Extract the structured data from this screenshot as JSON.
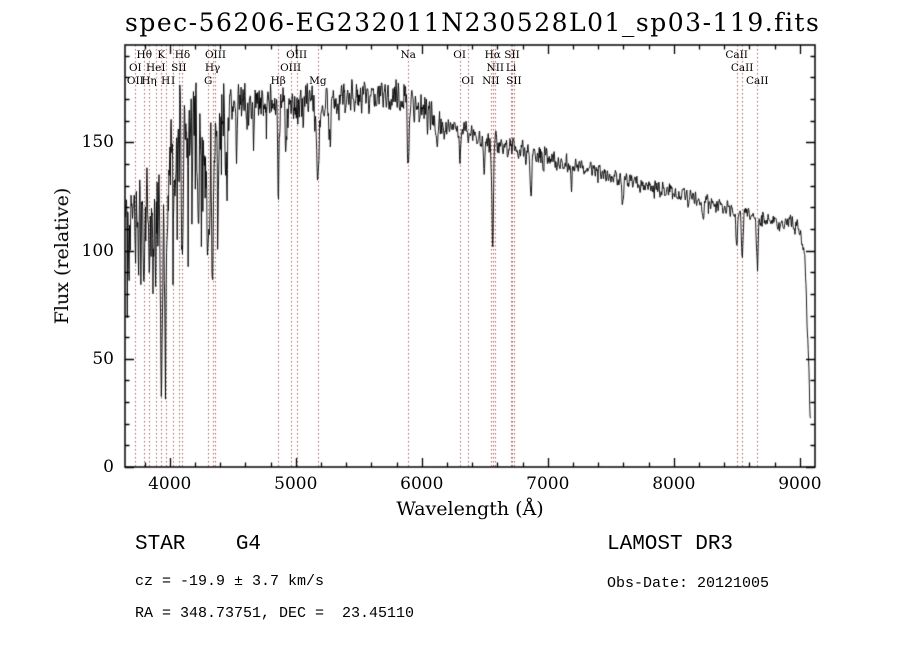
{
  "figure": {
    "footer": {
      "class_label": "STAR    G4",
      "survey": "LAMOST DR3",
      "cz": "cz = -19.9 ± 3.7 km/s",
      "obs_date": "Obs-Date: 20121005",
      "ra_dec": "RA = 348.73751, DEC =  23.45110"
    }
  },
  "chart_data": {
    "type": "line",
    "title": "spec-56206-EG232011N230528L01_sp03-119.fits",
    "xlabel": "Wavelength (Å)",
    "ylabel": "Flux (relative)",
    "xlim": [
      3645,
      9120
    ],
    "ylim": [
      0,
      195
    ],
    "x_ticks": [
      4000,
      5000,
      6000,
      7000,
      8000,
      9000
    ],
    "x_minor_step": 200,
    "y_ticks": [
      0,
      50,
      100,
      150
    ],
    "y_minor_step": 10,
    "grid": false,
    "legend": null,
    "line_color": "#000000",
    "marker_line_color": "#a04545",
    "description": "LAMOST DR3 stellar spectrum: noisy black flux curve peaking near 5800 Å at ~175 relative flux, declining to ~110 at 9000 Å then dropping sharply; red dotted vertical lines mark spectral features",
    "envelope": [
      [
        3645,
        100
      ],
      [
        3700,
        122
      ],
      [
        3760,
        136
      ],
      [
        3820,
        140
      ],
      [
        3880,
        134
      ],
      [
        3940,
        122
      ],
      [
        4000,
        146
      ],
      [
        4060,
        152
      ],
      [
        4120,
        150
      ],
      [
        4180,
        155
      ],
      [
        4240,
        152
      ],
      [
        4300,
        148
      ],
      [
        4360,
        155
      ],
      [
        4420,
        160
      ],
      [
        4500,
        165
      ],
      [
        4600,
        170
      ],
      [
        4700,
        168
      ],
      [
        4800,
        166
      ],
      [
        4900,
        170
      ],
      [
        5000,
        167
      ],
      [
        5100,
        170
      ],
      [
        5200,
        168
      ],
      [
        5300,
        170
      ],
      [
        5400,
        171
      ],
      [
        5500,
        169
      ],
      [
        5600,
        171
      ],
      [
        5700,
        170
      ],
      [
        5800,
        173
      ],
      [
        5880,
        171
      ],
      [
        5950,
        167
      ],
      [
        6050,
        163
      ],
      [
        6150,
        160
      ],
      [
        6250,
        157
      ],
      [
        6350,
        155
      ],
      [
        6450,
        152
      ],
      [
        6550,
        150
      ],
      [
        6650,
        148
      ],
      [
        6800,
        146
      ],
      [
        7000,
        143
      ],
      [
        7200,
        139
      ],
      [
        7400,
        136
      ],
      [
        7600,
        133
      ],
      [
        7800,
        130
      ],
      [
        8000,
        127
      ],
      [
        8200,
        124
      ],
      [
        8400,
        120
      ],
      [
        8600,
        117
      ],
      [
        8800,
        114
      ],
      [
        8950,
        112
      ],
      [
        9000,
        110
      ],
      [
        9040,
        96
      ],
      [
        9065,
        55
      ],
      [
        9085,
        18
      ]
    ],
    "absorption_lines": [
      [
        3727,
        35,
        5
      ],
      [
        3750,
        45,
        5
      ],
      [
        3770,
        40,
        4
      ],
      [
        3798,
        58,
        6
      ],
      [
        3835,
        58,
        6
      ],
      [
        3869,
        42,
        5
      ],
      [
        3889,
        48,
        5
      ],
      [
        3933,
        85,
        8
      ],
      [
        3968,
        80,
        8
      ],
      [
        4026,
        30,
        4
      ],
      [
        4045,
        35,
        5
      ],
      [
        4101,
        62,
        7
      ],
      [
        4144,
        32,
        5
      ],
      [
        4226,
        48,
        5
      ],
      [
        4305,
        68,
        9
      ],
      [
        4340,
        68,
        6
      ],
      [
        4383,
        45,
        5
      ],
      [
        4455,
        32,
        5
      ],
      [
        4530,
        25,
        5
      ],
      [
        4668,
        22,
        5
      ],
      [
        4861,
        46,
        6
      ],
      [
        4920,
        24,
        5
      ],
      [
        5175,
        36,
        9
      ],
      [
        5270,
        20,
        7
      ],
      [
        5892,
        32,
        7
      ],
      [
        6122,
        16,
        5
      ],
      [
        6300,
        14,
        5
      ],
      [
        6495,
        18,
        5
      ],
      [
        6563,
        50,
        6
      ],
      [
        6867,
        16,
        6
      ],
      [
        7186,
        10,
        6
      ],
      [
        7594,
        12,
        7
      ],
      [
        8230,
        10,
        7
      ],
      [
        8498,
        16,
        6
      ],
      [
        8542,
        22,
        7
      ],
      [
        8662,
        20,
        7
      ]
    ],
    "noise": {
      "seed": 20121005,
      "sample_step": 3,
      "regions": [
        {
          "from": 3645,
          "to": 4450,
          "amp": 20,
          "spike_p": 0.15,
          "spike_mult": 2.0
        },
        {
          "from": 4450,
          "to": 5200,
          "amp": 9,
          "spike_p": 0.05,
          "spike_mult": 1.8
        },
        {
          "from": 5200,
          "to": 6200,
          "amp": 6.5,
          "spike_p": 0.04,
          "spike_mult": 1.6
        },
        {
          "from": 6200,
          "to": 7200,
          "amp": 4.5,
          "spike_p": 0.03,
          "spike_mult": 1.6
        },
        {
          "from": 7200,
          "to": 9120,
          "amp": 3.2,
          "spike_p": 0.02,
          "spike_mult": 1.6
        }
      ]
    },
    "spectral_lines": [
      {
        "label": "Hθ",
        "wl": 3798,
        "row": 0
      },
      {
        "label": "K",
        "wl": 3933,
        "row": 0
      },
      {
        "label": "Hδ",
        "wl": 4101,
        "row": 0
      },
      {
        "label": "OIII",
        "wl": 4363,
        "row": 0
      },
      {
        "label": "OIII",
        "wl": 5007,
        "row": 0
      },
      {
        "label": "Na",
        "wl": 5892,
        "row": 0
      },
      {
        "label": "OI",
        "wl": 6300,
        "row": 0
      },
      {
        "label": "Hα",
        "wl": 6563,
        "row": 0
      },
      {
        "label": "SII",
        "wl": 6716,
        "row": 0
      },
      {
        "label": "CaII",
        "wl": 8498,
        "row": 0
      },
      {
        "label": "OI",
        "wl": 3727,
        "row": 1
      },
      {
        "label": "HeI",
        "wl": 3889,
        "row": 1
      },
      {
        "label": "SII",
        "wl": 4072,
        "row": 1
      },
      {
        "label": "Hγ",
        "wl": 4340,
        "row": 1
      },
      {
        "label": "OIII",
        "wl": 4959,
        "row": 1
      },
      {
        "label": "NII",
        "wl": 6583,
        "row": 1
      },
      {
        "label": "Li",
        "wl": 6708,
        "row": 1
      },
      {
        "label": "CaII",
        "wl": 8542,
        "row": 1
      },
      {
        "label": "OII",
        "wl": 3727,
        "row": 2
      },
      {
        "label": "Hη",
        "wl": 3835,
        "row": 2
      },
      {
        "label": "H",
        "wl": 3968,
        "row": 2
      },
      {
        "label": "I",
        "wl": 4026,
        "row": 2
      },
      {
        "label": "G",
        "wl": 4305,
        "row": 2
      },
      {
        "label": "Hβ",
        "wl": 4861,
        "row": 2
      },
      {
        "label": "Mg",
        "wl": 5175,
        "row": 2
      },
      {
        "label": "OI",
        "wl": 6365,
        "row": 2
      },
      {
        "label": "NII",
        "wl": 6548,
        "row": 2
      },
      {
        "label": "SII",
        "wl": 6731,
        "row": 2
      },
      {
        "label": "CaII",
        "wl": 8662,
        "row": 2
      }
    ]
  }
}
